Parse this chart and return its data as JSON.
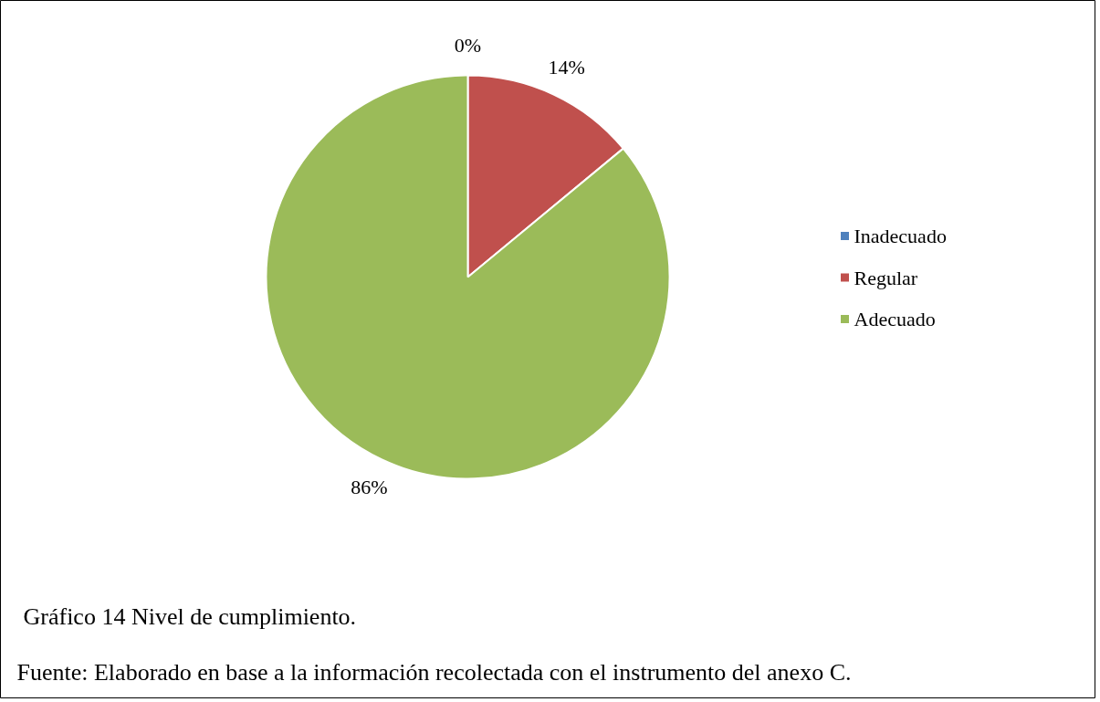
{
  "chart_data": {
    "type": "pie",
    "categories": [
      "Inadecuado",
      "Regular",
      "Adecuado"
    ],
    "values": [
      0,
      14,
      86
    ],
    "colors": [
      "#4f81bd",
      "#c0504d",
      "#9bbb59"
    ],
    "value_labels": [
      "0%",
      "14%",
      "86%"
    ],
    "legend": "right",
    "annotations": [
      "Gráfico 14 Nivel de cumplimiento.",
      "Fuente: Elaborado en base a la información recolectada con el instrumento del anexo C."
    ]
  }
}
